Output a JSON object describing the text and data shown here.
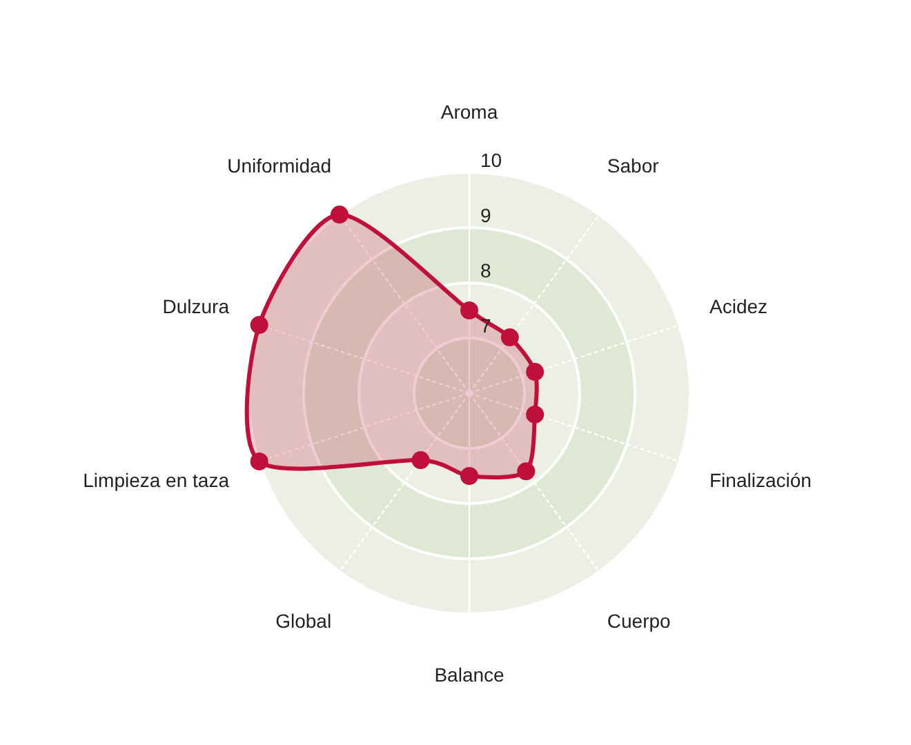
{
  "chart_data": {
    "type": "radar",
    "categories": [
      "Aroma",
      "Sabor",
      "Acidez",
      "Finalización",
      "Cuerpo",
      "Balance",
      "Global",
      "Limpieza en taza",
      "Dulzura",
      "Uniformidad"
    ],
    "series": [
      {
        "color": "#c0103a",
        "values": [
          7.5,
          7.25,
          7.25,
          7.25,
          7.75,
          7.5,
          7.5,
          10,
          10,
          10
        ]
      }
    ],
    "ylim": [
      6,
      10
    ],
    "yticks": [
      7,
      8,
      9,
      10
    ],
    "grid": true,
    "marker": "circle",
    "line_style": "solid"
  }
}
